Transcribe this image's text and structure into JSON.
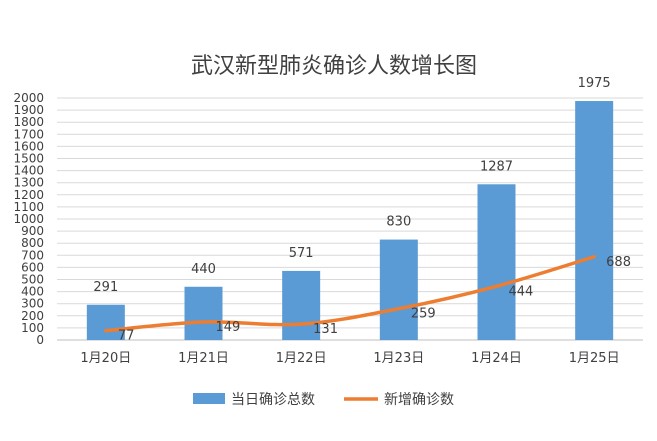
{
  "chart_data": {
    "type": "bar",
    "title": "武汉新型肺炎确诊人数增长图",
    "categories": [
      "1月20日",
      "1月21日",
      "1月22日",
      "1月23日",
      "1月24日",
      "1月25日"
    ],
    "ylim": [
      0,
      2000
    ],
    "yticks": [
      0,
      100,
      200,
      300,
      400,
      500,
      600,
      700,
      800,
      900,
      1000,
      1100,
      1200,
      1300,
      1400,
      1500,
      1600,
      1700,
      1800,
      1900,
      2000
    ],
    "grid": true,
    "legend_position": "bottom",
    "series": [
      {
        "name": "当日确诊总数",
        "type": "bar",
        "color": "#5b9bd5",
        "values": [
          291,
          440,
          571,
          830,
          1287,
          1975
        ]
      },
      {
        "name": "新增确诊数",
        "type": "line",
        "color": "#ed7d31",
        "values": [
          77,
          149,
          131,
          259,
          444,
          688
        ]
      }
    ]
  }
}
